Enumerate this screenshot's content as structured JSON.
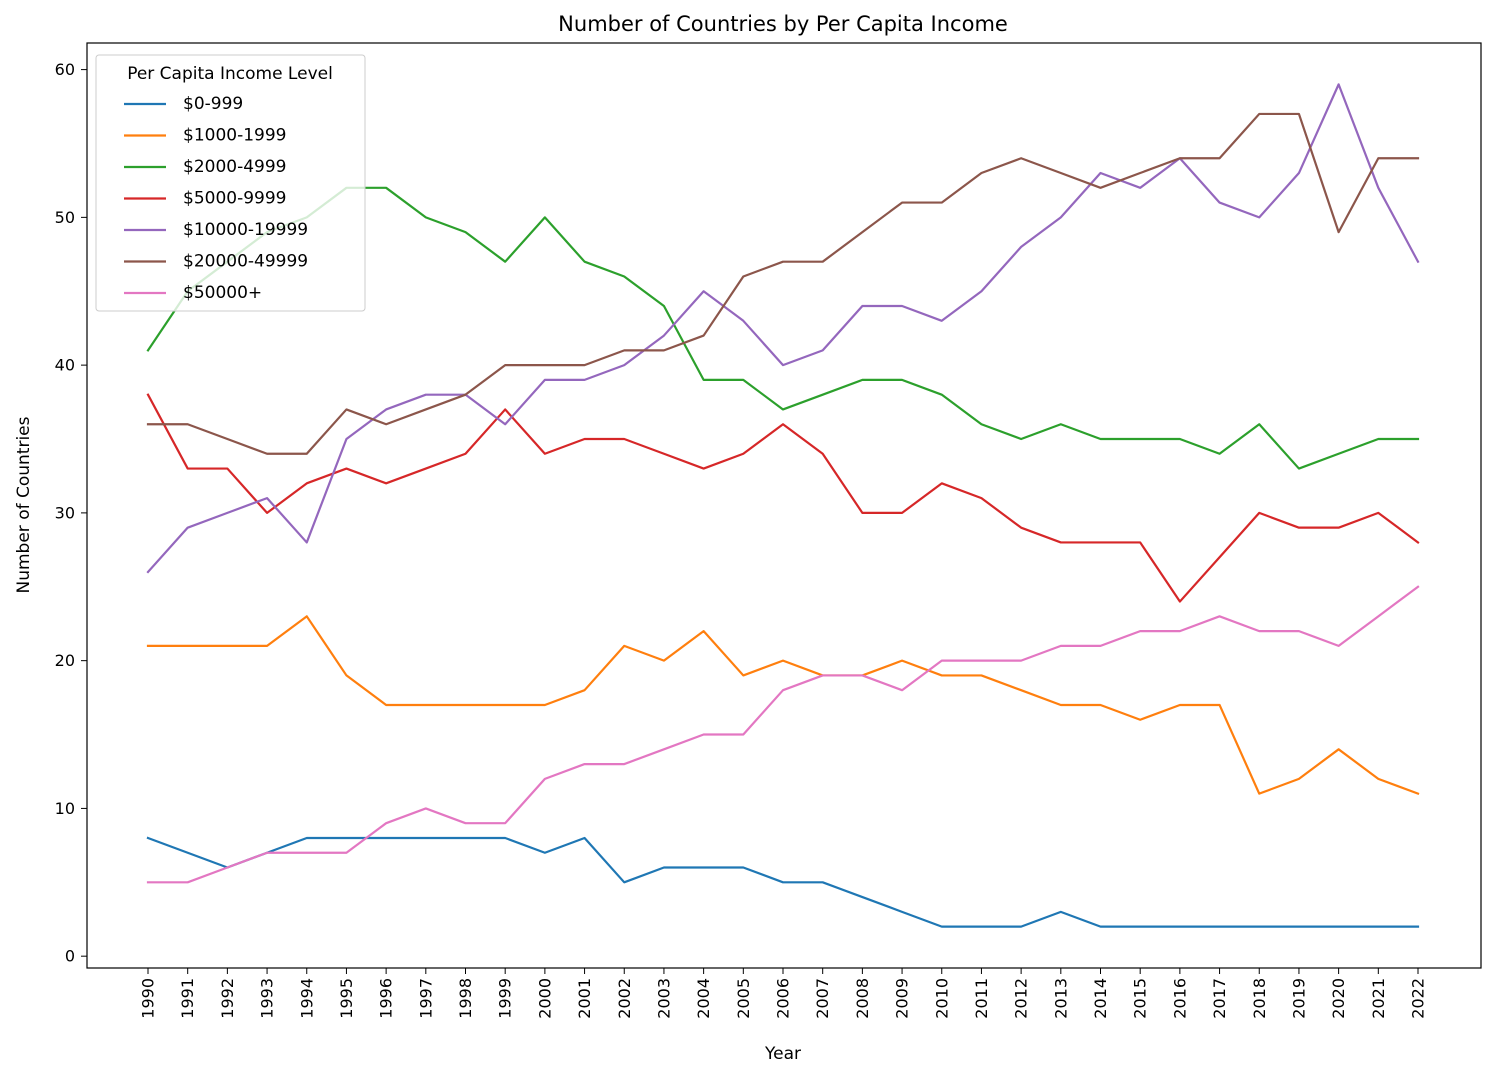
{
  "chart_data": {
    "type": "line",
    "title": "Number of Countries by Per Capita Income",
    "xlabel": "Year",
    "ylabel": "Number of Countries",
    "x": [
      "1990",
      "1991",
      "1992",
      "1993",
      "1994",
      "1995",
      "1996",
      "1997",
      "1998",
      "1999",
      "2000",
      "2001",
      "2002",
      "2003",
      "2004",
      "2005",
      "2006",
      "2007",
      "2008",
      "2009",
      "2010",
      "2011",
      "2012",
      "2013",
      "2014",
      "2015",
      "2016",
      "2017",
      "2018",
      "2019",
      "2020",
      "2021",
      "2022"
    ],
    "yticks": [
      0,
      10,
      20,
      30,
      40,
      50,
      60
    ],
    "ylim": [
      -0.8,
      61.8
    ],
    "grid": false,
    "legend": {
      "title": "Per Capita Income Level",
      "placement": "upper-left"
    },
    "series": [
      {
        "name": "$0-999",
        "color": "#1f77b4",
        "values": [
          8,
          7,
          6,
          7,
          8,
          8,
          8,
          8,
          8,
          8,
          7,
          8,
          5,
          6,
          6,
          6,
          5,
          5,
          4,
          3,
          2,
          2,
          2,
          3,
          2,
          2,
          2,
          2,
          2,
          2,
          2,
          2,
          2
        ]
      },
      {
        "name": "$1000-1999",
        "color": "#ff7f0e",
        "values": [
          21,
          21,
          21,
          21,
          23,
          19,
          17,
          17,
          17,
          17,
          17,
          18,
          21,
          20,
          22,
          19,
          20,
          19,
          19,
          20,
          19,
          19,
          18,
          17,
          17,
          16,
          17,
          17,
          11,
          12,
          14,
          12,
          11
        ]
      },
      {
        "name": "$2000-4999",
        "color": "#2ca02c",
        "values": [
          41,
          45,
          47,
          49,
          50,
          52,
          52,
          50,
          49,
          47,
          50,
          47,
          46,
          44,
          39,
          39,
          37,
          38,
          39,
          39,
          38,
          36,
          35,
          36,
          35,
          35,
          35,
          34,
          36,
          33,
          34,
          35,
          35
        ]
      },
      {
        "name": "$5000-9999",
        "color": "#d62728",
        "values": [
          38,
          33,
          33,
          30,
          32,
          33,
          32,
          33,
          34,
          37,
          34,
          35,
          35,
          34,
          33,
          34,
          36,
          34,
          30,
          30,
          32,
          31,
          29,
          28,
          28,
          28,
          24,
          27,
          30,
          29,
          29,
          30,
          28
        ]
      },
      {
        "name": "$10000-19999",
        "color": "#9467bd",
        "values": [
          26,
          29,
          30,
          31,
          28,
          35,
          37,
          38,
          38,
          36,
          39,
          39,
          40,
          42,
          45,
          43,
          40,
          41,
          44,
          44,
          43,
          45,
          48,
          50,
          53,
          52,
          54,
          51,
          50,
          53,
          59,
          52,
          47
        ]
      },
      {
        "name": "$20000-49999",
        "color": "#8c564b",
        "values": [
          36,
          36,
          35,
          34,
          34,
          37,
          36,
          37,
          38,
          40,
          40,
          40,
          41,
          41,
          42,
          46,
          47,
          47,
          49,
          51,
          51,
          53,
          54,
          53,
          52,
          53,
          54,
          54,
          57,
          57,
          49,
          54,
          54
        ]
      },
      {
        "name": "$50000+",
        "color": "#e377c2",
        "values": [
          5,
          5,
          6,
          7,
          7,
          7,
          9,
          10,
          9,
          9,
          12,
          13,
          13,
          14,
          15,
          15,
          18,
          19,
          19,
          18,
          20,
          20,
          20,
          21,
          21,
          22,
          22,
          23,
          22,
          22,
          21,
          23,
          25
        ]
      }
    ]
  }
}
